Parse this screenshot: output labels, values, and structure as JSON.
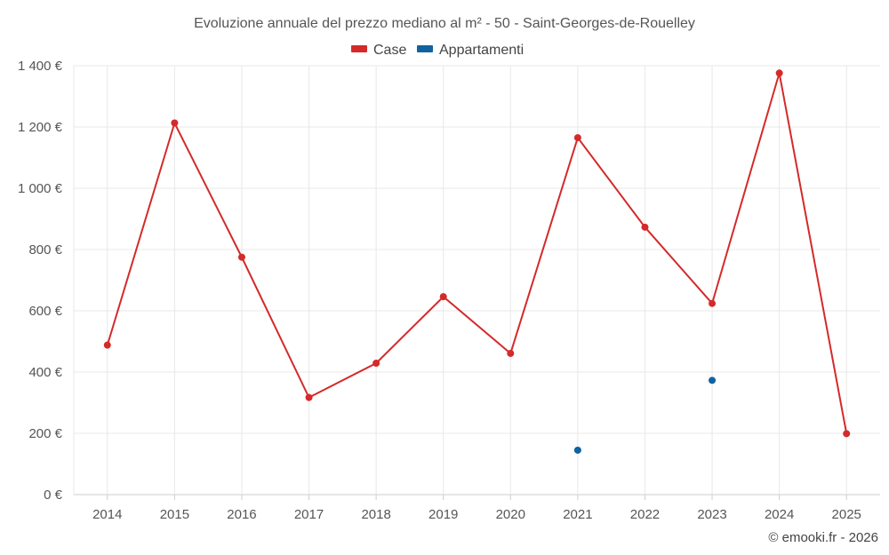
{
  "chart_data": {
    "type": "line",
    "title": "Evoluzione annuale del prezzo mediano al m² - 50 - Saint-Georges-de-Rouelley",
    "categories": [
      "2014",
      "2015",
      "2016",
      "2017",
      "2018",
      "2019",
      "2020",
      "2021",
      "2022",
      "2023",
      "2024",
      "2025"
    ],
    "ylim": [
      0,
      1400
    ],
    "yticks": [
      0,
      200,
      400,
      600,
      800,
      1000,
      1200,
      1400
    ],
    "ytick_labels": [
      "0 €",
      "200 €",
      "400 €",
      "600 €",
      "800 €",
      "1 000 €",
      "1 200 €",
      "1 400 €"
    ],
    "series": [
      {
        "name": "Case",
        "color": "#d42a2a",
        "values": [
          488,
          1213,
          775,
          317,
          429,
          646,
          461,
          1165,
          873,
          624,
          1376,
          199
        ]
      },
      {
        "name": "Appartamenti",
        "color": "#0f63a0",
        "values": [
          null,
          null,
          null,
          null,
          null,
          null,
          null,
          145,
          null,
          373,
          null,
          null
        ]
      }
    ],
    "legend_position": "top-center",
    "credit": "© emooki.fr - 2026"
  }
}
